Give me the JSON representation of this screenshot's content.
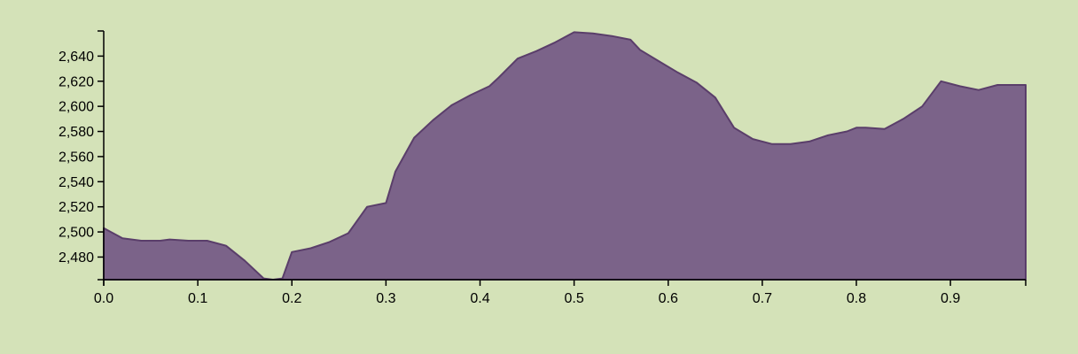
{
  "chart_data": {
    "type": "area",
    "title": "",
    "xlabel": "",
    "ylabel": "",
    "xlim": [
      0,
      0.98
    ],
    "ylim": [
      2462,
      2660
    ],
    "grid": false,
    "x_ticks": [
      {
        "value": 0.0,
        "label": "0.0"
      },
      {
        "value": 0.1,
        "label": "0.1"
      },
      {
        "value": 0.2,
        "label": "0.2"
      },
      {
        "value": 0.3,
        "label": "0.3"
      },
      {
        "value": 0.4,
        "label": "0.4"
      },
      {
        "value": 0.5,
        "label": "0.5"
      },
      {
        "value": 0.6,
        "label": "0.6"
      },
      {
        "value": 0.7,
        "label": "0.7"
      },
      {
        "value": 0.8,
        "label": "0.8"
      },
      {
        "value": 0.9,
        "label": "0.9"
      }
    ],
    "y_ticks": [
      {
        "value": 2480,
        "label": "2,480"
      },
      {
        "value": 2500,
        "label": "2,500"
      },
      {
        "value": 2520,
        "label": "2,520"
      },
      {
        "value": 2540,
        "label": "2,540"
      },
      {
        "value": 2560,
        "label": "2,560"
      },
      {
        "value": 2580,
        "label": "2,580"
      },
      {
        "value": 2600,
        "label": "2,600"
      },
      {
        "value": 2620,
        "label": "2,620"
      },
      {
        "value": 2640,
        "label": "2,640"
      }
    ],
    "fill_color": "#7b6389",
    "stroke_color": "#5a3e6a",
    "background_color": "#d4e2b8",
    "x": [
      0.0,
      0.01,
      0.02,
      0.04,
      0.06,
      0.07,
      0.09,
      0.11,
      0.13,
      0.15,
      0.17,
      0.18,
      0.19,
      0.2,
      0.22,
      0.24,
      0.26,
      0.28,
      0.3,
      0.31,
      0.33,
      0.35,
      0.37,
      0.39,
      0.41,
      0.42,
      0.44,
      0.46,
      0.48,
      0.5,
      0.52,
      0.54,
      0.56,
      0.57,
      0.59,
      0.61,
      0.63,
      0.65,
      0.67,
      0.69,
      0.71,
      0.73,
      0.75,
      0.77,
      0.79,
      0.8,
      0.81,
      0.83,
      0.85,
      0.87,
      0.89,
      0.91,
      0.93,
      0.95,
      0.98
    ],
    "values": [
      2503,
      2499,
      2495,
      2493,
      2493,
      2494,
      2493,
      2493,
      2489,
      2477,
      2463,
      2462,
      2463,
      2484,
      2487,
      2492,
      2499,
      2520,
      2523,
      2548,
      2575,
      2589,
      2601,
      2609,
      2616,
      2623,
      2638,
      2644,
      2651,
      2659,
      2658,
      2656,
      2653,
      2645,
      2636,
      2627,
      2619,
      2607,
      2583,
      2574,
      2570,
      2570,
      2572,
      2577,
      2580,
      2583,
      2583,
      2582,
      2590,
      2600,
      2620,
      2616,
      2613,
      2617,
      2617
    ]
  }
}
